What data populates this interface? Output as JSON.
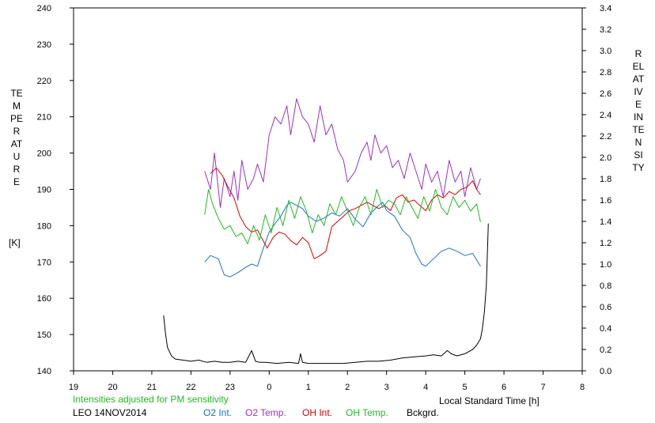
{
  "chart_data": {
    "type": "line",
    "left_axis": {
      "label": "TEMPERATURE",
      "unit": "[K]",
      "range": [
        140,
        240
      ],
      "ticks": [
        "140",
        "150",
        "160",
        "170",
        "180",
        "190",
        "200",
        "210",
        "220",
        "230",
        "240"
      ]
    },
    "right_axis": {
      "label": "RELATIVE INTENSITY",
      "range": [
        0.0,
        3.4
      ],
      "ticks": [
        "0.0",
        "0.2",
        "0.4",
        "0.6",
        "0.8",
        "1.0",
        "1.2",
        "1.4",
        "1.6",
        "1.8",
        "2.0",
        "2.2",
        "2.4",
        "2.6",
        "2.8",
        "3.0",
        "3.2",
        "3.4"
      ]
    },
    "x_axis": {
      "label": "Local Standard Time [h]",
      "range": [
        19,
        32
      ],
      "ticks": [
        "19",
        "20",
        "21",
        "22",
        "23",
        "0",
        "1",
        "2",
        "3",
        "4",
        "5",
        "6",
        "7",
        "8"
      ]
    },
    "note": "Intensities adjusted for PM sensitivity",
    "station": "LEO 14NOV2014",
    "series": [
      {
        "name": "O2 Int.",
        "color": "#1a6fd6",
        "axis": "right",
        "x": [
          22.35,
          22.5,
          22.7,
          22.85,
          23.0,
          23.2,
          23.4,
          23.55,
          23.7,
          23.85,
          24.0,
          24.15,
          24.3,
          24.45,
          24.55,
          24.7,
          24.85,
          25.0,
          25.2,
          25.4,
          25.6,
          25.8,
          26.0,
          26.2,
          26.4,
          26.6,
          26.8,
          26.9,
          27.0,
          27.2,
          27.4,
          27.6,
          27.75,
          27.9,
          28.0,
          28.2,
          28.4,
          28.6,
          28.8,
          29.0,
          29.2,
          29.4
        ],
        "y": [
          1.02,
          1.08,
          1.05,
          0.9,
          0.88,
          0.92,
          0.97,
          1.0,
          0.98,
          1.15,
          1.3,
          1.38,
          1.45,
          1.55,
          1.58,
          1.55,
          1.52,
          1.45,
          1.4,
          1.43,
          1.48,
          1.45,
          1.52,
          1.42,
          1.35,
          1.48,
          1.55,
          1.58,
          1.5,
          1.45,
          1.32,
          1.25,
          1.1,
          1.0,
          0.98,
          1.05,
          1.12,
          1.15,
          1.12,
          1.08,
          1.1,
          0.98
        ]
      },
      {
        "name": "O2 Temp.",
        "color": "#9b30c8",
        "axis": "left",
        "x": [
          22.35,
          22.5,
          22.6,
          22.75,
          22.85,
          23.0,
          23.1,
          23.2,
          23.3,
          23.45,
          23.6,
          23.7,
          23.85,
          24.0,
          24.15,
          24.3,
          24.45,
          24.55,
          24.7,
          24.85,
          25.0,
          25.15,
          25.3,
          25.45,
          25.6,
          25.75,
          25.9,
          26.0,
          26.2,
          26.35,
          26.5,
          26.6,
          26.7,
          26.85,
          27.0,
          27.15,
          27.3,
          27.45,
          27.6,
          27.75,
          27.9,
          28.0,
          28.15,
          28.3,
          28.45,
          28.6,
          28.75,
          28.9,
          29.0,
          29.15,
          29.3,
          29.4
        ],
        "y": [
          195,
          190,
          200,
          185,
          193,
          188,
          195,
          187,
          198,
          190,
          193,
          197,
          192,
          205,
          210,
          208,
          213,
          205,
          215,
          210,
          208,
          203,
          213,
          205,
          208,
          201,
          198,
          192,
          195,
          200,
          203,
          198,
          205,
          200,
          202,
          196,
          198,
          193,
          200,
          195,
          190,
          197,
          192,
          195,
          188,
          198,
          192,
          195,
          188,
          196,
          190,
          193
        ]
      },
      {
        "name": "OH Int.",
        "color": "#dd0000",
        "axis": "right",
        "x": [
          22.5,
          22.65,
          22.8,
          22.95,
          23.1,
          23.25,
          23.4,
          23.55,
          23.7,
          23.8,
          23.95,
          24.1,
          24.25,
          24.4,
          24.55,
          24.7,
          24.85,
          25.0,
          25.15,
          25.3,
          25.45,
          25.6,
          25.75,
          25.9,
          26.05,
          26.2,
          26.35,
          26.5,
          26.65,
          26.8,
          26.95,
          27.1,
          27.25,
          27.4,
          27.55,
          27.7,
          27.85,
          28.0,
          28.15,
          28.3,
          28.45,
          28.6,
          28.75,
          28.9,
          29.05,
          29.2,
          29.3,
          29.4
        ],
        "y": [
          1.85,
          1.9,
          1.83,
          1.72,
          1.62,
          1.45,
          1.35,
          1.3,
          1.32,
          1.25,
          1.15,
          1.25,
          1.3,
          1.28,
          1.22,
          1.18,
          1.25,
          1.2,
          1.05,
          1.08,
          1.12,
          1.35,
          1.4,
          1.45,
          1.5,
          1.52,
          1.55,
          1.58,
          1.55,
          1.52,
          1.55,
          1.5,
          1.62,
          1.65,
          1.58,
          1.6,
          1.55,
          1.5,
          1.6,
          1.65,
          1.62,
          1.68,
          1.65,
          1.7,
          1.72,
          1.78,
          1.7,
          1.65
        ]
      },
      {
        "name": "OH Temp.",
        "color": "#22bb22",
        "axis": "left",
        "x": [
          22.35,
          22.45,
          22.55,
          22.7,
          22.85,
          23.0,
          23.15,
          23.3,
          23.45,
          23.6,
          23.75,
          23.9,
          24.05,
          24.2,
          24.35,
          24.5,
          24.65,
          24.8,
          24.95,
          25.1,
          25.25,
          25.4,
          25.55,
          25.7,
          25.85,
          26.0,
          26.15,
          26.3,
          26.45,
          26.6,
          26.75,
          26.9,
          27.05,
          27.2,
          27.35,
          27.5,
          27.65,
          27.8,
          27.95,
          28.1,
          28.25,
          28.4,
          28.55,
          28.7,
          28.85,
          29.0,
          29.15,
          29.3,
          29.4
        ],
        "y": [
          183,
          190,
          186,
          182,
          179,
          180,
          177,
          178,
          175,
          180,
          176,
          183,
          178,
          185,
          180,
          187,
          182,
          188,
          184,
          178,
          183,
          180,
          186,
          183,
          188,
          184,
          180,
          185,
          188,
          183,
          190,
          185,
          187,
          186,
          183,
          188,
          185,
          182,
          188,
          184,
          190,
          185,
          183,
          188,
          185,
          187,
          184,
          186,
          181
        ]
      },
      {
        "name": "Bckgrd.",
        "color": "#000000",
        "axis": "right",
        "x": [
          21.3,
          21.35,
          21.4,
          21.5,
          21.6,
          21.8,
          22.0,
          22.2,
          22.4,
          22.6,
          22.8,
          23.0,
          23.2,
          23.4,
          23.55,
          23.65,
          23.75,
          23.9,
          24.2,
          24.5,
          24.75,
          24.8,
          24.85,
          25.0,
          25.3,
          25.6,
          25.9,
          26.2,
          26.5,
          26.8,
          27.1,
          27.4,
          27.7,
          28.0,
          28.2,
          28.4,
          28.55,
          28.65,
          28.8,
          29.0,
          29.2,
          29.3,
          29.4,
          29.45,
          29.5,
          29.55,
          29.6
        ],
        "y": [
          0.52,
          0.35,
          0.22,
          0.14,
          0.11,
          0.1,
          0.09,
          0.1,
          0.08,
          0.09,
          0.08,
          0.08,
          0.09,
          0.08,
          0.19,
          0.09,
          0.08,
          0.08,
          0.07,
          0.08,
          0.07,
          0.16,
          0.08,
          0.07,
          0.07,
          0.07,
          0.07,
          0.08,
          0.09,
          0.09,
          0.1,
          0.12,
          0.13,
          0.14,
          0.15,
          0.14,
          0.19,
          0.16,
          0.14,
          0.16,
          0.2,
          0.24,
          0.3,
          0.4,
          0.55,
          0.8,
          1.38
        ]
      }
    ]
  }
}
